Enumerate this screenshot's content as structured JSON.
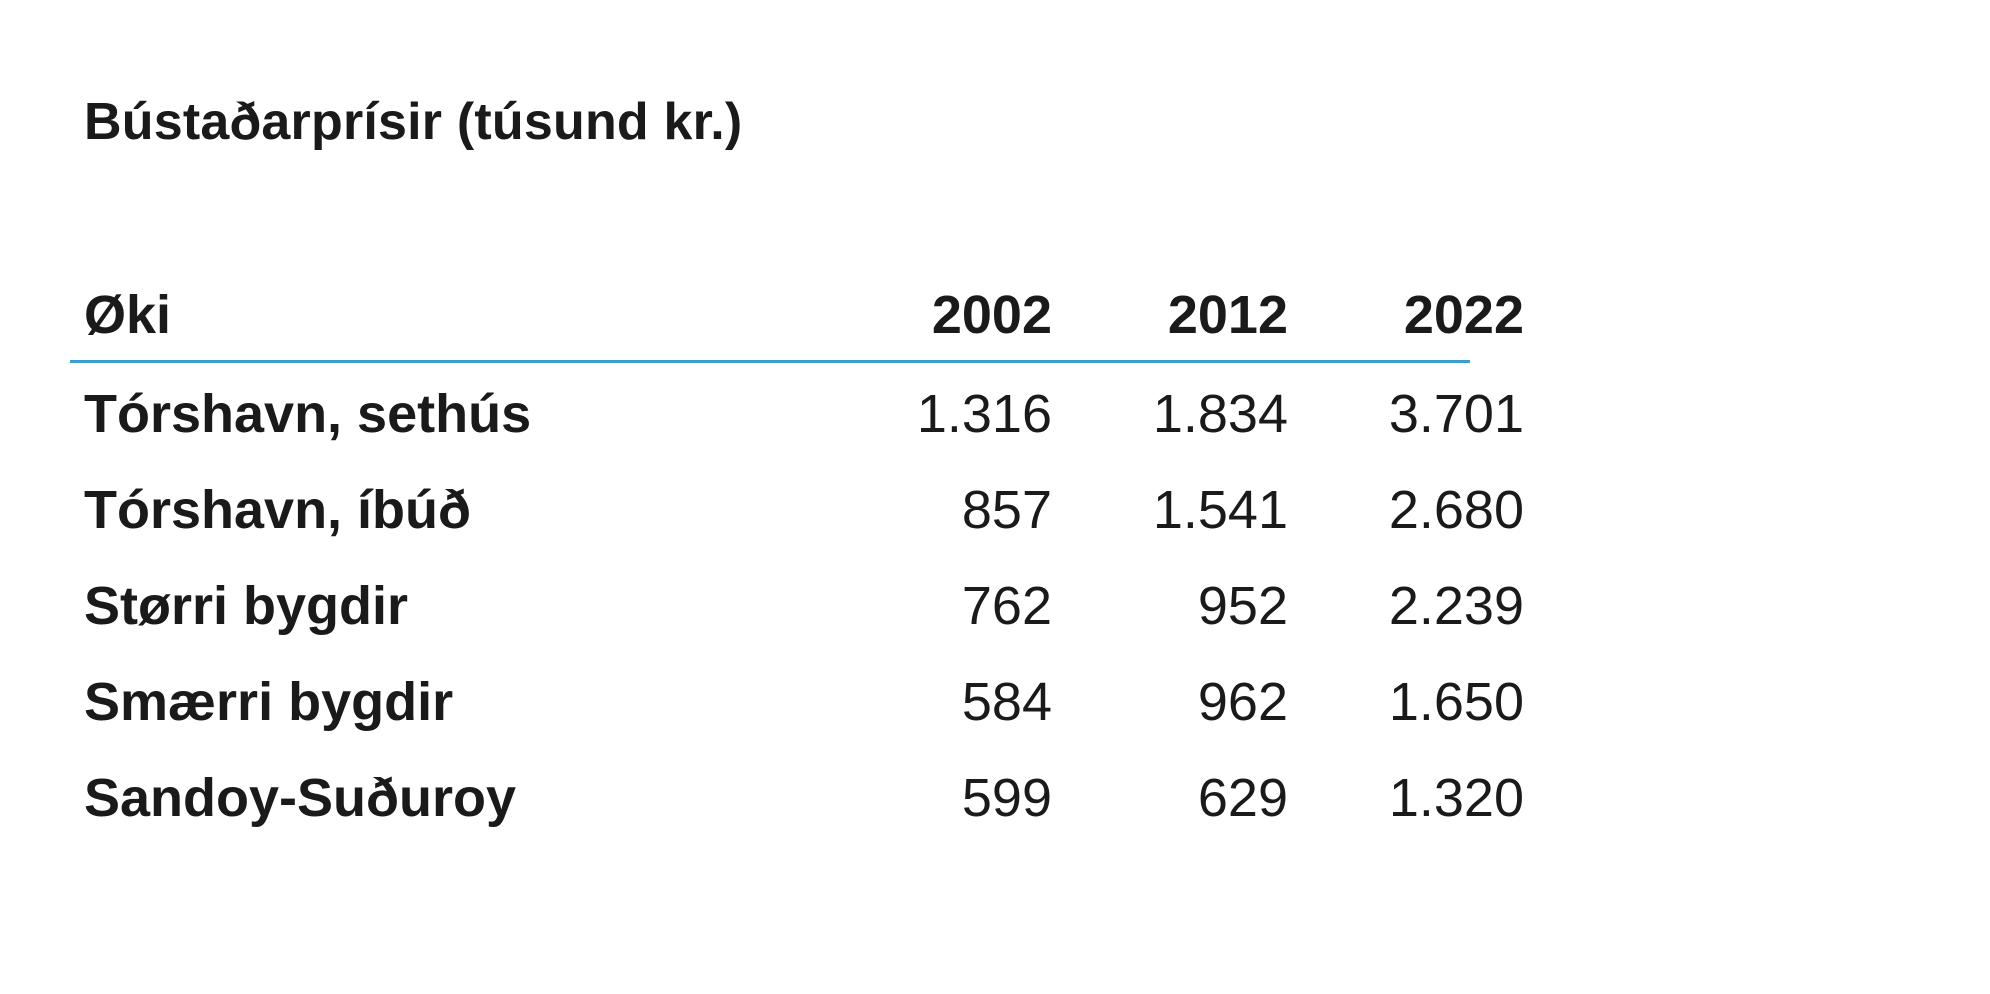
{
  "chart_data": {
    "type": "table",
    "title": "Bústaðarprísir (túsund kr.)",
    "columns": [
      "Øki",
      "2002",
      "2012",
      "2022"
    ],
    "rows": [
      {
        "label": "Tórshavn, sethús",
        "values": [
          "1.316",
          "1.834",
          "3.701"
        ]
      },
      {
        "label": "Tórshavn, íbúð",
        "values": [
          "857",
          "1.541",
          "2.680"
        ]
      },
      {
        "label": "Størri bygdir",
        "values": [
          "762",
          "952",
          "2.239"
        ]
      },
      {
        "label": "Smærri bygdir",
        "values": [
          "584",
          "962",
          "1.650"
        ]
      },
      {
        "label": "Sandoy-Suðuroy",
        "values": [
          "599",
          "629",
          "1.320"
        ]
      }
    ],
    "colors": {
      "header_rule": "#3a9fd0",
      "text": "#1a1a1a"
    }
  }
}
